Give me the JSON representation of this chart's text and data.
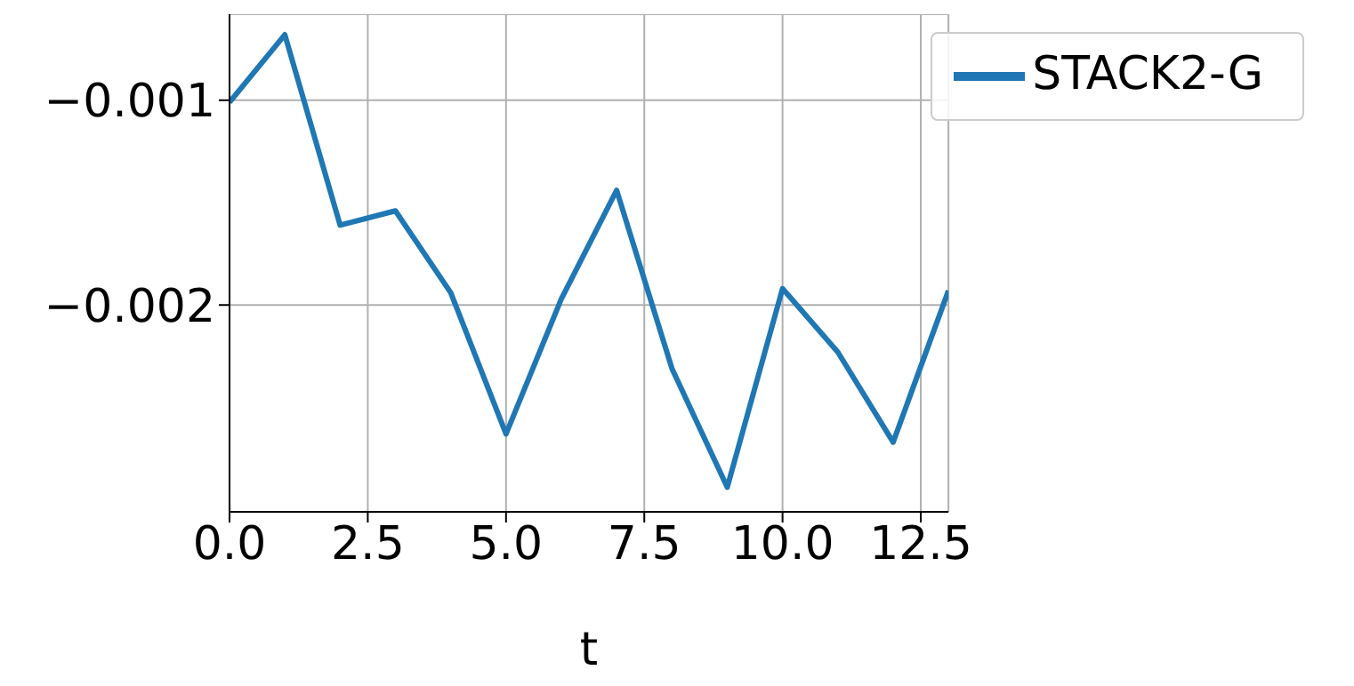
{
  "chart_data": {
    "type": "line",
    "xlabel": "t",
    "x": [
      0,
      1,
      2,
      3,
      4,
      5,
      6,
      7,
      8,
      9,
      10,
      11,
      12,
      13
    ],
    "series": [
      {
        "name": "STACK2-G",
        "color": "#1f77b4",
        "values": [
          -0.00101,
          -0.00068,
          -0.00161,
          -0.00154,
          -0.00194,
          -0.00263,
          -0.00197,
          -0.00144,
          -0.00231,
          -0.00289,
          -0.00192,
          -0.00223,
          -0.00267,
          -0.00193
        ]
      }
    ],
    "xlim": [
      0,
      13
    ],
    "xticks": [
      {
        "value": 0,
        "label": "0.0"
      },
      {
        "value": 2.5,
        "label": "2.5"
      },
      {
        "value": 5,
        "label": "5.0"
      },
      {
        "value": 7.5,
        "label": "7.5"
      },
      {
        "value": 10,
        "label": "10.0"
      },
      {
        "value": 12.5,
        "label": "12.5"
      }
    ],
    "ylim": [
      -0.00301,
      -0.00058
    ],
    "yticks": [
      {
        "value": -0.002,
        "label": "−0.002"
      },
      {
        "value": -0.001,
        "label": "−0.001"
      }
    ],
    "grid": true,
    "legend": "top right",
    "marker": "none",
    "line_style": "solid"
  }
}
